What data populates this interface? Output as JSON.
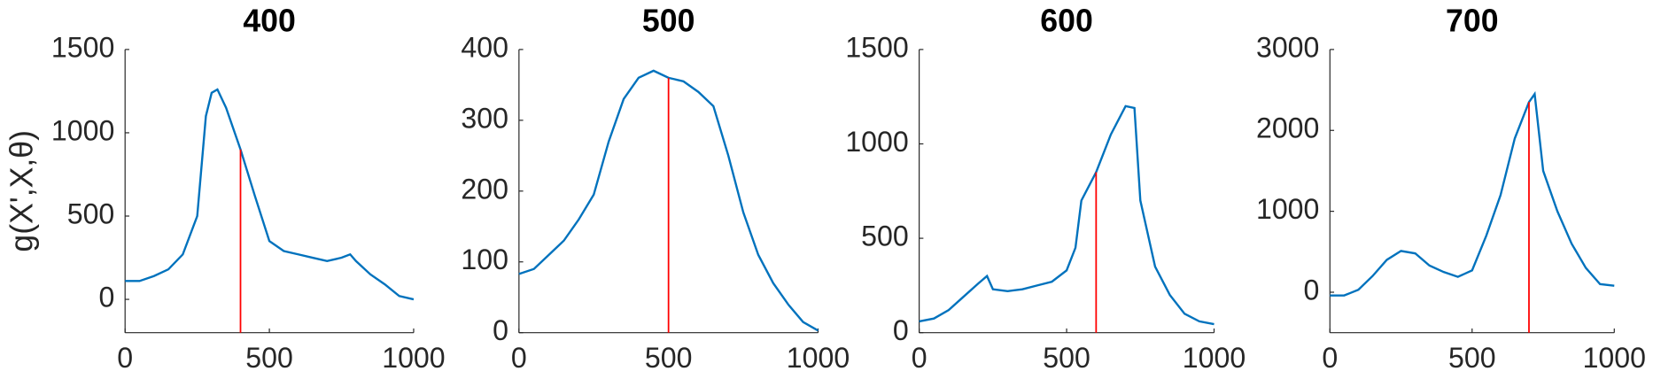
{
  "chart_data": [
    {
      "type": "line",
      "title": "400",
      "ylabel": "g(X',X,θ)",
      "x": [
        0,
        50,
        100,
        150,
        200,
        250,
        280,
        300,
        320,
        350,
        400,
        450,
        500,
        550,
        600,
        650,
        700,
        750,
        780,
        800,
        850,
        900,
        950,
        1000
      ],
      "series": [
        {
          "color": "#0072bd",
          "values": [
            110,
            110,
            140,
            180,
            270,
            500,
            1100,
            1240,
            1260,
            1150,
            900,
            620,
            350,
            290,
            270,
            250,
            230,
            250,
            270,
            230,
            150,
            90,
            20,
            0
          ]
        }
      ],
      "vline_x": 400,
      "vline_color": "#ff0000",
      "xlim": [
        0,
        1000
      ],
      "xticks": [
        0,
        500,
        1000
      ],
      "ylim": [
        -200,
        1500
      ],
      "yticks": [
        0,
        500,
        1000,
        1500
      ]
    },
    {
      "type": "line",
      "title": "500",
      "x": [
        0,
        50,
        100,
        150,
        200,
        250,
        300,
        350,
        400,
        450,
        500,
        550,
        600,
        650,
        700,
        750,
        800,
        850,
        900,
        950,
        1000
      ],
      "series": [
        {
          "color": "#0072bd",
          "values": [
            83,
            90,
            110,
            130,
            160,
            195,
            270,
            330,
            360,
            370,
            360,
            355,
            340,
            320,
            250,
            170,
            110,
            70,
            40,
            15,
            3
          ]
        }
      ],
      "vline_x": 500,
      "vline_color": "#ff0000",
      "xlim": [
        0,
        1000
      ],
      "xticks": [
        0,
        500,
        1000
      ],
      "ylim": [
        0,
        400
      ],
      "yticks": [
        0,
        100,
        200,
        300,
        400
      ]
    },
    {
      "type": "line",
      "title": "600",
      "x": [
        0,
        50,
        100,
        150,
        200,
        230,
        250,
        300,
        350,
        400,
        450,
        500,
        530,
        550,
        600,
        650,
        700,
        730,
        750,
        800,
        850,
        900,
        950,
        1000
      ],
      "series": [
        {
          "color": "#0072bd",
          "values": [
            60,
            75,
            120,
            190,
            260,
            300,
            230,
            220,
            230,
            250,
            270,
            330,
            450,
            700,
            850,
            1050,
            1200,
            1190,
            700,
            350,
            200,
            100,
            60,
            45
          ]
        }
      ],
      "vline_x": 600,
      "vline_color": "#ff0000",
      "xlim": [
        0,
        1000
      ],
      "xticks": [
        0,
        500,
        1000
      ],
      "ylim": [
        0,
        1500
      ],
      "yticks": [
        0,
        500,
        1000,
        1500
      ]
    },
    {
      "type": "line",
      "title": "700",
      "x": [
        0,
        50,
        100,
        150,
        200,
        250,
        300,
        350,
        400,
        450,
        500,
        550,
        600,
        650,
        700,
        720,
        750,
        800,
        850,
        900,
        950,
        1000
      ],
      "series": [
        {
          "color": "#0072bd",
          "values": [
            -40,
            -40,
            30,
            200,
            400,
            510,
            480,
            330,
            250,
            190,
            270,
            700,
            1200,
            1900,
            2350,
            2450,
            1500,
            1000,
            600,
            300,
            100,
            80
          ]
        }
      ],
      "vline_x": 700,
      "vline_color": "#ff0000",
      "xlim": [
        0,
        1000
      ],
      "xticks": [
        0,
        500,
        1000
      ],
      "ylim": [
        -500,
        3000
      ],
      "yticks": [
        0,
        1000,
        2000,
        3000
      ]
    }
  ]
}
